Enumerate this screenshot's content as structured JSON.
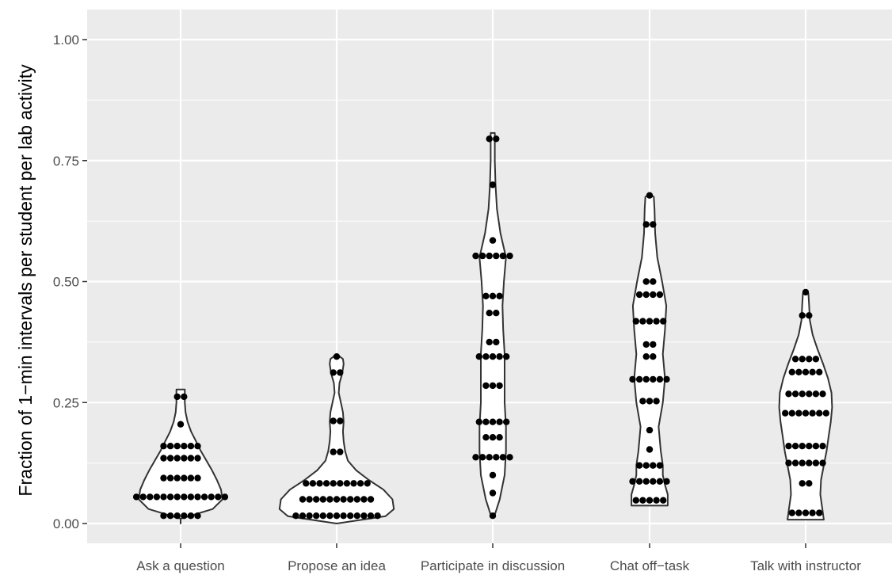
{
  "chart_data": {
    "type": "violin",
    "title": "",
    "xlabel": "",
    "ylabel": "Fraction of 1−min intervals per student per lab activity",
    "ylim": [
      -0.04,
      1.04
    ],
    "yticks": [
      0.0,
      0.25,
      0.5,
      0.75,
      1.0
    ],
    "ytick_labels": [
      "0.00",
      "0.25",
      "0.50",
      "0.75",
      "1.00"
    ],
    "grid": true,
    "legend": "none",
    "colors": {
      "panel": "#ebebeb",
      "grid_major": "#ffffff",
      "violin_fill": "#ffffff",
      "violin_stroke": "#333333",
      "dot": "#000000",
      "tick_label": "#4d4d4d",
      "tick_mark": "#333333",
      "axis_title": "#000000"
    },
    "categories": [
      "Ask a question",
      "Propose an idea",
      "Participate in discussion",
      "Chat off−task",
      "Talk with instructor"
    ],
    "series": [
      {
        "category": "Ask a question",
        "values": [
          0.016,
          0.016,
          0.016,
          0.016,
          0.016,
          0.016,
          0.055,
          0.055,
          0.055,
          0.055,
          0.055,
          0.055,
          0.055,
          0.055,
          0.055,
          0.055,
          0.055,
          0.055,
          0.055,
          0.055,
          0.094,
          0.094,
          0.094,
          0.094,
          0.094,
          0.094,
          0.135,
          0.135,
          0.135,
          0.135,
          0.135,
          0.135,
          0.16,
          0.16,
          0.16,
          0.16,
          0.16,
          0.16,
          0.205,
          0.262,
          0.262
        ],
        "violin": [
          [
            0,
            0.0
          ],
          [
            0.01,
            0.0
          ],
          [
            0.03,
            0.46
          ],
          [
            0.05,
            0.6
          ],
          [
            0.07,
            0.58
          ],
          [
            0.09,
            0.52
          ],
          [
            0.11,
            0.45
          ],
          [
            0.13,
            0.37
          ],
          [
            0.15,
            0.29
          ],
          [
            0.17,
            0.22
          ],
          [
            0.19,
            0.15
          ],
          [
            0.21,
            0.1
          ],
          [
            0.23,
            0.07
          ],
          [
            0.25,
            0.06
          ],
          [
            0.277,
            0.06
          ],
          [
            0.277,
            0.0
          ]
        ]
      },
      {
        "category": "Propose an idea",
        "values": [
          0.016,
          0.016,
          0.016,
          0.016,
          0.016,
          0.016,
          0.016,
          0.016,
          0.016,
          0.016,
          0.016,
          0.016,
          0.016,
          0.05,
          0.05,
          0.05,
          0.05,
          0.05,
          0.05,
          0.05,
          0.05,
          0.05,
          0.05,
          0.05,
          0.083,
          0.083,
          0.083,
          0.083,
          0.083,
          0.083,
          0.083,
          0.083,
          0.083,
          0.083,
          0.148,
          0.148,
          0.212,
          0.212,
          0.312,
          0.312,
          0.345
        ],
        "violin": [
          [
            0,
            0.0
          ],
          [
            0.015,
            0.7
          ],
          [
            0.03,
            0.82
          ],
          [
            0.05,
            0.8
          ],
          [
            0.07,
            0.67
          ],
          [
            0.09,
            0.46
          ],
          [
            0.11,
            0.28
          ],
          [
            0.13,
            0.16
          ],
          [
            0.15,
            0.12
          ],
          [
            0.17,
            0.1
          ],
          [
            0.19,
            0.09
          ],
          [
            0.21,
            0.1
          ],
          [
            0.23,
            0.09
          ],
          [
            0.25,
            0.06
          ],
          [
            0.27,
            0.03
          ],
          [
            0.29,
            0.04
          ],
          [
            0.31,
            0.08
          ],
          [
            0.33,
            0.1
          ],
          [
            0.34,
            0.09
          ],
          [
            0.35,
            0.0
          ]
        ]
      },
      {
        "category": "Participate in discussion",
        "values": [
          0.016,
          0.063,
          0.1,
          0.137,
          0.137,
          0.137,
          0.137,
          0.137,
          0.137,
          0.178,
          0.178,
          0.178,
          0.21,
          0.21,
          0.21,
          0.21,
          0.21,
          0.285,
          0.285,
          0.285,
          0.345,
          0.345,
          0.345,
          0.345,
          0.345,
          0.375,
          0.375,
          0.435,
          0.435,
          0.47,
          0.47,
          0.47,
          0.553,
          0.553,
          0.553,
          0.553,
          0.553,
          0.553,
          0.585,
          0.7,
          0.795,
          0.795
        ],
        "violin": [
          [
            0.014,
            0.0
          ],
          [
            0.014,
            0.02
          ],
          [
            0.05,
            0.1
          ],
          [
            0.1,
            0.17
          ],
          [
            0.15,
            0.19
          ],
          [
            0.2,
            0.19
          ],
          [
            0.25,
            0.17
          ],
          [
            0.3,
            0.17
          ],
          [
            0.35,
            0.17
          ],
          [
            0.4,
            0.15
          ],
          [
            0.45,
            0.14
          ],
          [
            0.5,
            0.16
          ],
          [
            0.55,
            0.19
          ],
          [
            0.6,
            0.11
          ],
          [
            0.65,
            0.06
          ],
          [
            0.7,
            0.04
          ],
          [
            0.75,
            0.03
          ],
          [
            0.8,
            0.03
          ],
          [
            0.807,
            0.03
          ],
          [
            0.807,
            0.0
          ]
        ]
      },
      {
        "category": "Chat off−task",
        "values": [
          0.048,
          0.048,
          0.048,
          0.048,
          0.048,
          0.087,
          0.087,
          0.087,
          0.087,
          0.087,
          0.087,
          0.12,
          0.12,
          0.12,
          0.12,
          0.153,
          0.193,
          0.253,
          0.253,
          0.253,
          0.298,
          0.298,
          0.298,
          0.298,
          0.298,
          0.298,
          0.345,
          0.345,
          0.37,
          0.37,
          0.418,
          0.418,
          0.418,
          0.418,
          0.418,
          0.473,
          0.473,
          0.473,
          0.473,
          0.5,
          0.5,
          0.618,
          0.618,
          0.678
        ],
        "violin": [
          [
            0.037,
            0.0
          ],
          [
            0.037,
            0.26
          ],
          [
            0.06,
            0.26
          ],
          [
            0.08,
            0.22
          ],
          [
            0.1,
            0.19
          ],
          [
            0.12,
            0.19
          ],
          [
            0.15,
            0.16
          ],
          [
            0.2,
            0.13
          ],
          [
            0.25,
            0.19
          ],
          [
            0.3,
            0.22
          ],
          [
            0.35,
            0.19
          ],
          [
            0.4,
            0.22
          ],
          [
            0.45,
            0.24
          ],
          [
            0.5,
            0.18
          ],
          [
            0.55,
            0.11
          ],
          [
            0.6,
            0.08
          ],
          [
            0.65,
            0.07
          ],
          [
            0.675,
            0.06
          ],
          [
            0.682,
            0.0
          ]
        ]
      },
      {
        "category": "Talk with instructor",
        "values": [
          0.022,
          0.022,
          0.022,
          0.022,
          0.022,
          0.083,
          0.083,
          0.125,
          0.125,
          0.125,
          0.125,
          0.125,
          0.125,
          0.16,
          0.16,
          0.16,
          0.16,
          0.16,
          0.16,
          0.228,
          0.228,
          0.228,
          0.228,
          0.228,
          0.228,
          0.228,
          0.268,
          0.268,
          0.268,
          0.268,
          0.268,
          0.268,
          0.313,
          0.313,
          0.313,
          0.313,
          0.313,
          0.34,
          0.34,
          0.34,
          0.34,
          0.43,
          0.43,
          0.478
        ],
        "violin": [
          [
            0.008,
            0.0
          ],
          [
            0.008,
            0.26
          ],
          [
            0.03,
            0.24
          ],
          [
            0.06,
            0.21
          ],
          [
            0.09,
            0.22
          ],
          [
            0.12,
            0.26
          ],
          [
            0.15,
            0.3
          ],
          [
            0.18,
            0.33
          ],
          [
            0.21,
            0.36
          ],
          [
            0.24,
            0.38
          ],
          [
            0.27,
            0.37
          ],
          [
            0.3,
            0.32
          ],
          [
            0.33,
            0.25
          ],
          [
            0.36,
            0.17
          ],
          [
            0.39,
            0.1
          ],
          [
            0.42,
            0.06
          ],
          [
            0.45,
            0.05
          ],
          [
            0.475,
            0.04
          ],
          [
            0.48,
            0.0
          ]
        ]
      }
    ]
  }
}
